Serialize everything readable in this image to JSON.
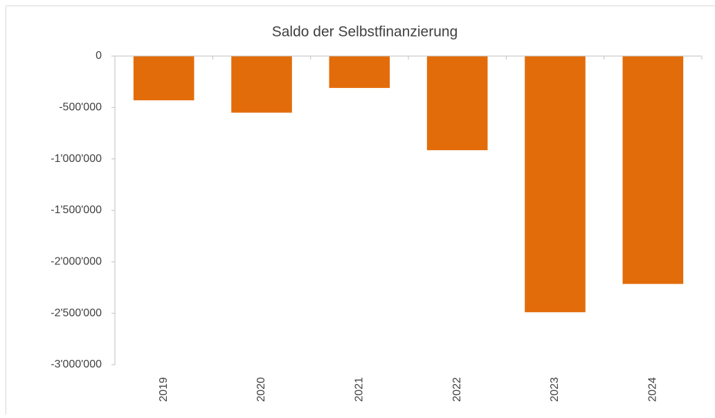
{
  "chart_data": {
    "type": "bar",
    "title": "Saldo der Selbstfinanzierung",
    "categories": [
      "2019",
      "2020",
      "2021",
      "2022",
      "2023",
      "2024"
    ],
    "values": [
      -430000,
      -550000,
      -310000,
      -915000,
      -2490000,
      -2215000
    ],
    "color": "#e36c0a",
    "ylim": [
      -3000000,
      0
    ],
    "yticks": [
      0,
      {
        "value": -500000,
        "label": "-500'000"
      },
      {
        "value": -1000000,
        "label": "-1'000'000"
      },
      {
        "value": -1500000,
        "label": "-1'500'000"
      },
      {
        "value": -2000000,
        "label": "-2'000'000"
      },
      {
        "value": -2500000,
        "label": "-2'500'000"
      },
      {
        "value": -3000000,
        "label": "-3'000'000"
      }
    ],
    "grid": false
  }
}
